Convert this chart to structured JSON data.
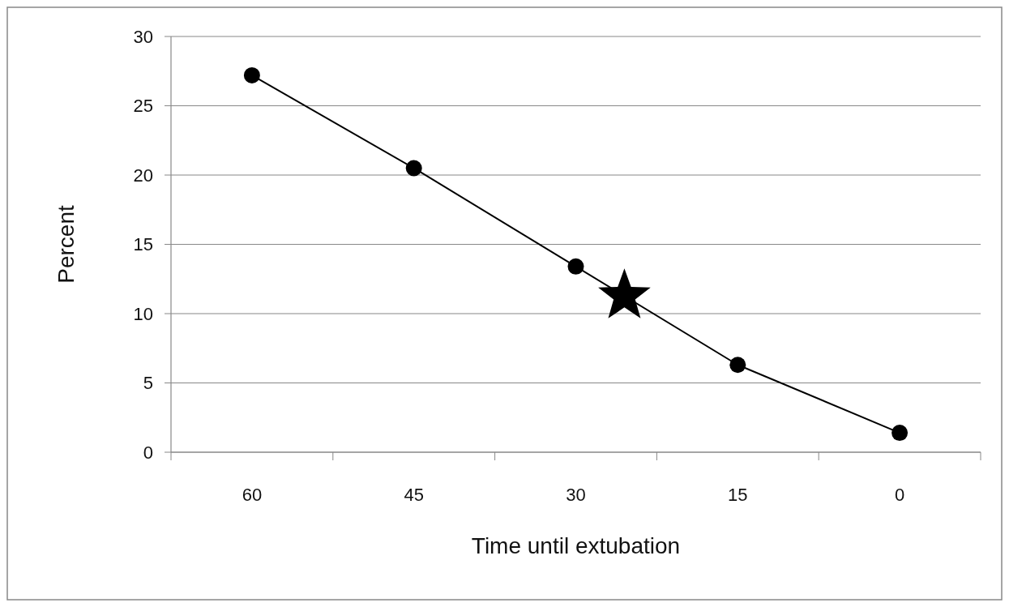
{
  "chart_data": {
    "type": "line",
    "xlabel": "Time until extubation",
    "ylabel": "Percent",
    "categories": [
      "60",
      "45",
      "30",
      "15",
      "0"
    ],
    "series": [
      {
        "color": "#000000",
        "values": [
          27.2,
          20.5,
          13.4,
          6.3,
          1.4
        ]
      }
    ],
    "ylim": [
      0,
      30
    ],
    "yticks": [
      0,
      5,
      10,
      15,
      20,
      25,
      30
    ],
    "grid": "y",
    "marker": "circle",
    "line_style": "solid"
  }
}
